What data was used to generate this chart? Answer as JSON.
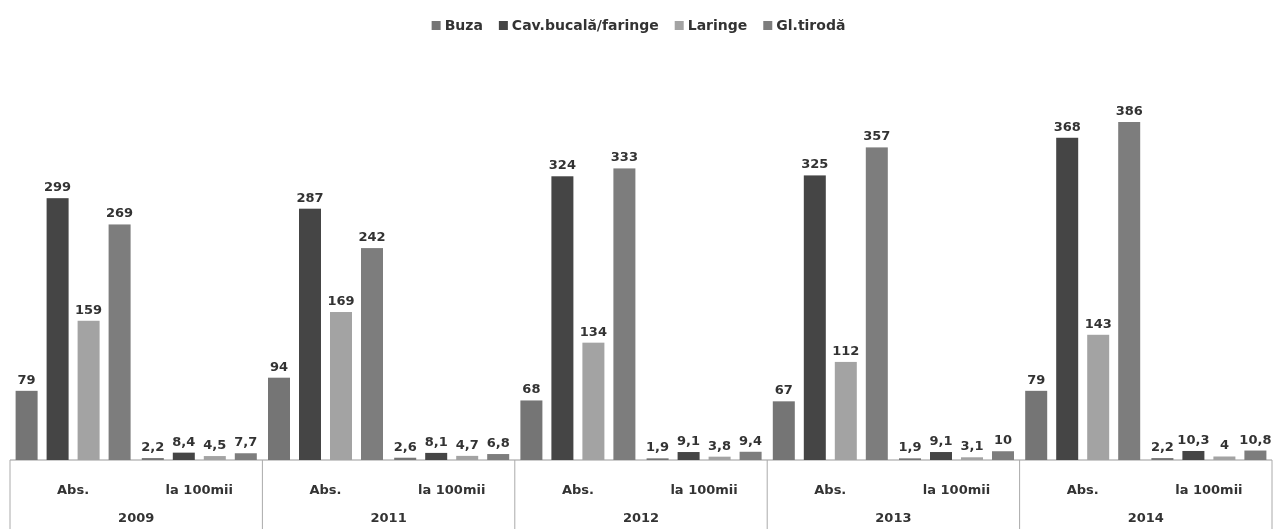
{
  "chart_data": {
    "type": "bar",
    "categories": [
      "Abs.",
      "la 100mii",
      "Abs.",
      "la 100mii",
      "Abs.",
      "la 100mii",
      "Abs.",
      "la 100mii",
      "Abs.",
      "la 100mii"
    ],
    "series": [
      {
        "name": "Buza",
        "color": "#757575",
        "values": [
          79,
          2.2,
          94,
          2.6,
          68,
          1.9,
          67,
          1.9,
          79,
          2.2
        ],
        "value_labels": [
          "79",
          "2,2",
          "94",
          "2,6",
          "68",
          "1,9",
          "67",
          "1,9",
          "79",
          "2,2"
        ]
      },
      {
        "name": "Cav.bucală/faringe",
        "color": "#454545",
        "values": [
          299,
          8.4,
          287,
          8.1,
          324,
          9.1,
          325,
          9.1,
          368,
          10.3
        ],
        "value_labels": [
          "299",
          "8,4",
          "287",
          "8,1",
          "324",
          "9,1",
          "325",
          "9,1",
          "368",
          "10,3"
        ]
      },
      {
        "name": "Laringe",
        "color": "#a3a3a3",
        "values": [
          159,
          4.5,
          169,
          4.7,
          134,
          3.8,
          112,
          3.1,
          143,
          4
        ],
        "value_labels": [
          "159",
          "4,5",
          "169",
          "4,7",
          "134",
          "3,8",
          "112",
          "3,1",
          "143",
          "4"
        ]
      },
      {
        "name": "Gl.tirodă",
        "color": "#7d7d7d",
        "values": [
          269,
          7.7,
          242,
          6.8,
          333,
          9.4,
          357,
          10,
          386,
          10.8
        ],
        "value_labels": [
          "269",
          "7,7",
          "242",
          "6,8",
          "333",
          "9,4",
          "357",
          "10",
          "386",
          "10,8"
        ]
      }
    ],
    "annotations": [
      "2009",
      "2011",
      "2012",
      "2013",
      "2014"
    ],
    "legend": "top"
  }
}
